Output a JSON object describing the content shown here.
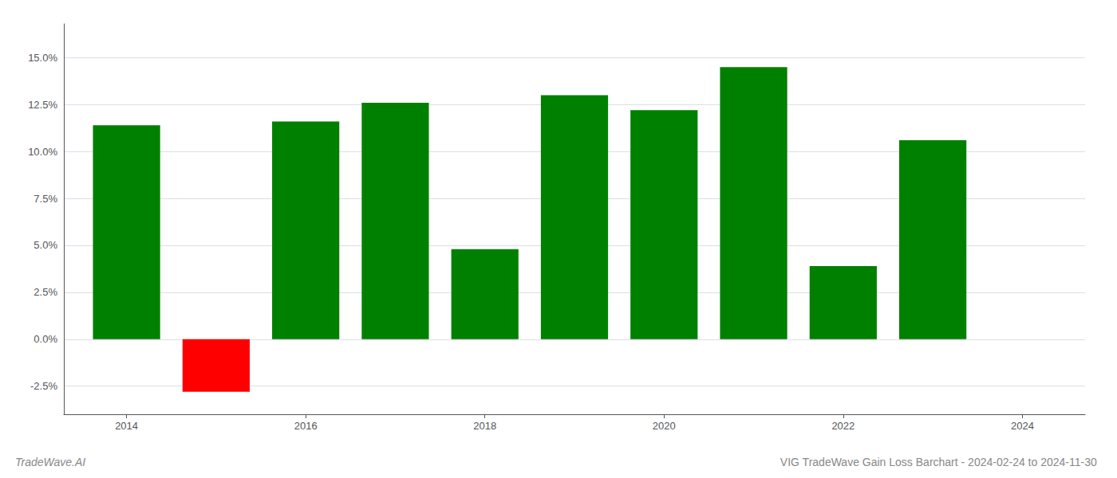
{
  "chart_data": {
    "type": "bar",
    "title": "VIG TradeWave Gain Loss Barchart - 2024-02-24 to 2024-11-30",
    "annotations": [
      {
        "text": "TradeWave.AI"
      }
    ],
    "x": [
      2014,
      2015,
      2016,
      2017,
      2018,
      2019,
      2020,
      2021,
      2022,
      2023
    ],
    "values": [
      0.114,
      -0.028,
      0.116,
      0.126,
      0.048,
      0.13,
      0.122,
      0.145,
      0.039,
      0.106
    ],
    "colors": [
      "#008000",
      "#ff0000",
      "#008000",
      "#008000",
      "#008000",
      "#008000",
      "#008000",
      "#008000",
      "#008000",
      "#008000"
    ],
    "xlim": [
      2013.3,
      2024.7
    ],
    "xticks": [
      2014,
      2016,
      2018,
      2020,
      2022,
      2024
    ],
    "ylim": [
      -0.04,
      0.168
    ],
    "yticks": [
      {
        "value": -0.025,
        "label": "-2.5%"
      },
      {
        "value": 0.0,
        "label": "0.0%"
      },
      {
        "value": 0.025,
        "label": "2.5%"
      },
      {
        "value": 0.05,
        "label": "5.0%"
      },
      {
        "value": 0.075,
        "label": "7.5%"
      },
      {
        "value": 0.1,
        "label": "10.0%"
      },
      {
        "value": 0.125,
        "label": "12.5%"
      },
      {
        "value": 0.15,
        "label": "15.0%"
      }
    ],
    "grid": true
  }
}
